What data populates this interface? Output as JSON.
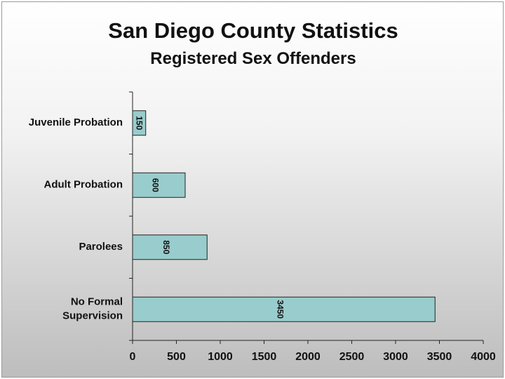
{
  "chart_data": {
    "type": "bar",
    "orientation": "horizontal",
    "title": "San Diego County Statistics",
    "subtitle": "Registered Sex Offenders",
    "categories": [
      "Juvenile Probation",
      "Adult Probation",
      "Parolees",
      "No Formal Supervision"
    ],
    "category_lines": [
      [
        "Juvenile Probation"
      ],
      [
        "Adult Probation"
      ],
      [
        "Parolees"
      ],
      [
        "No Formal",
        "Supervision"
      ]
    ],
    "values": [
      150,
      600,
      850,
      3450
    ],
    "data_labels": [
      "150",
      "600",
      "850",
      "3450"
    ],
    "xlim": [
      0,
      4000
    ],
    "xticks": [
      "0",
      "500",
      "1000",
      "1500",
      "2000",
      "2500",
      "3000",
      "3500",
      "4000"
    ],
    "xlabel": "",
    "ylabel": "",
    "bar_color": "#99cccc",
    "grid": false,
    "legend": "none"
  }
}
